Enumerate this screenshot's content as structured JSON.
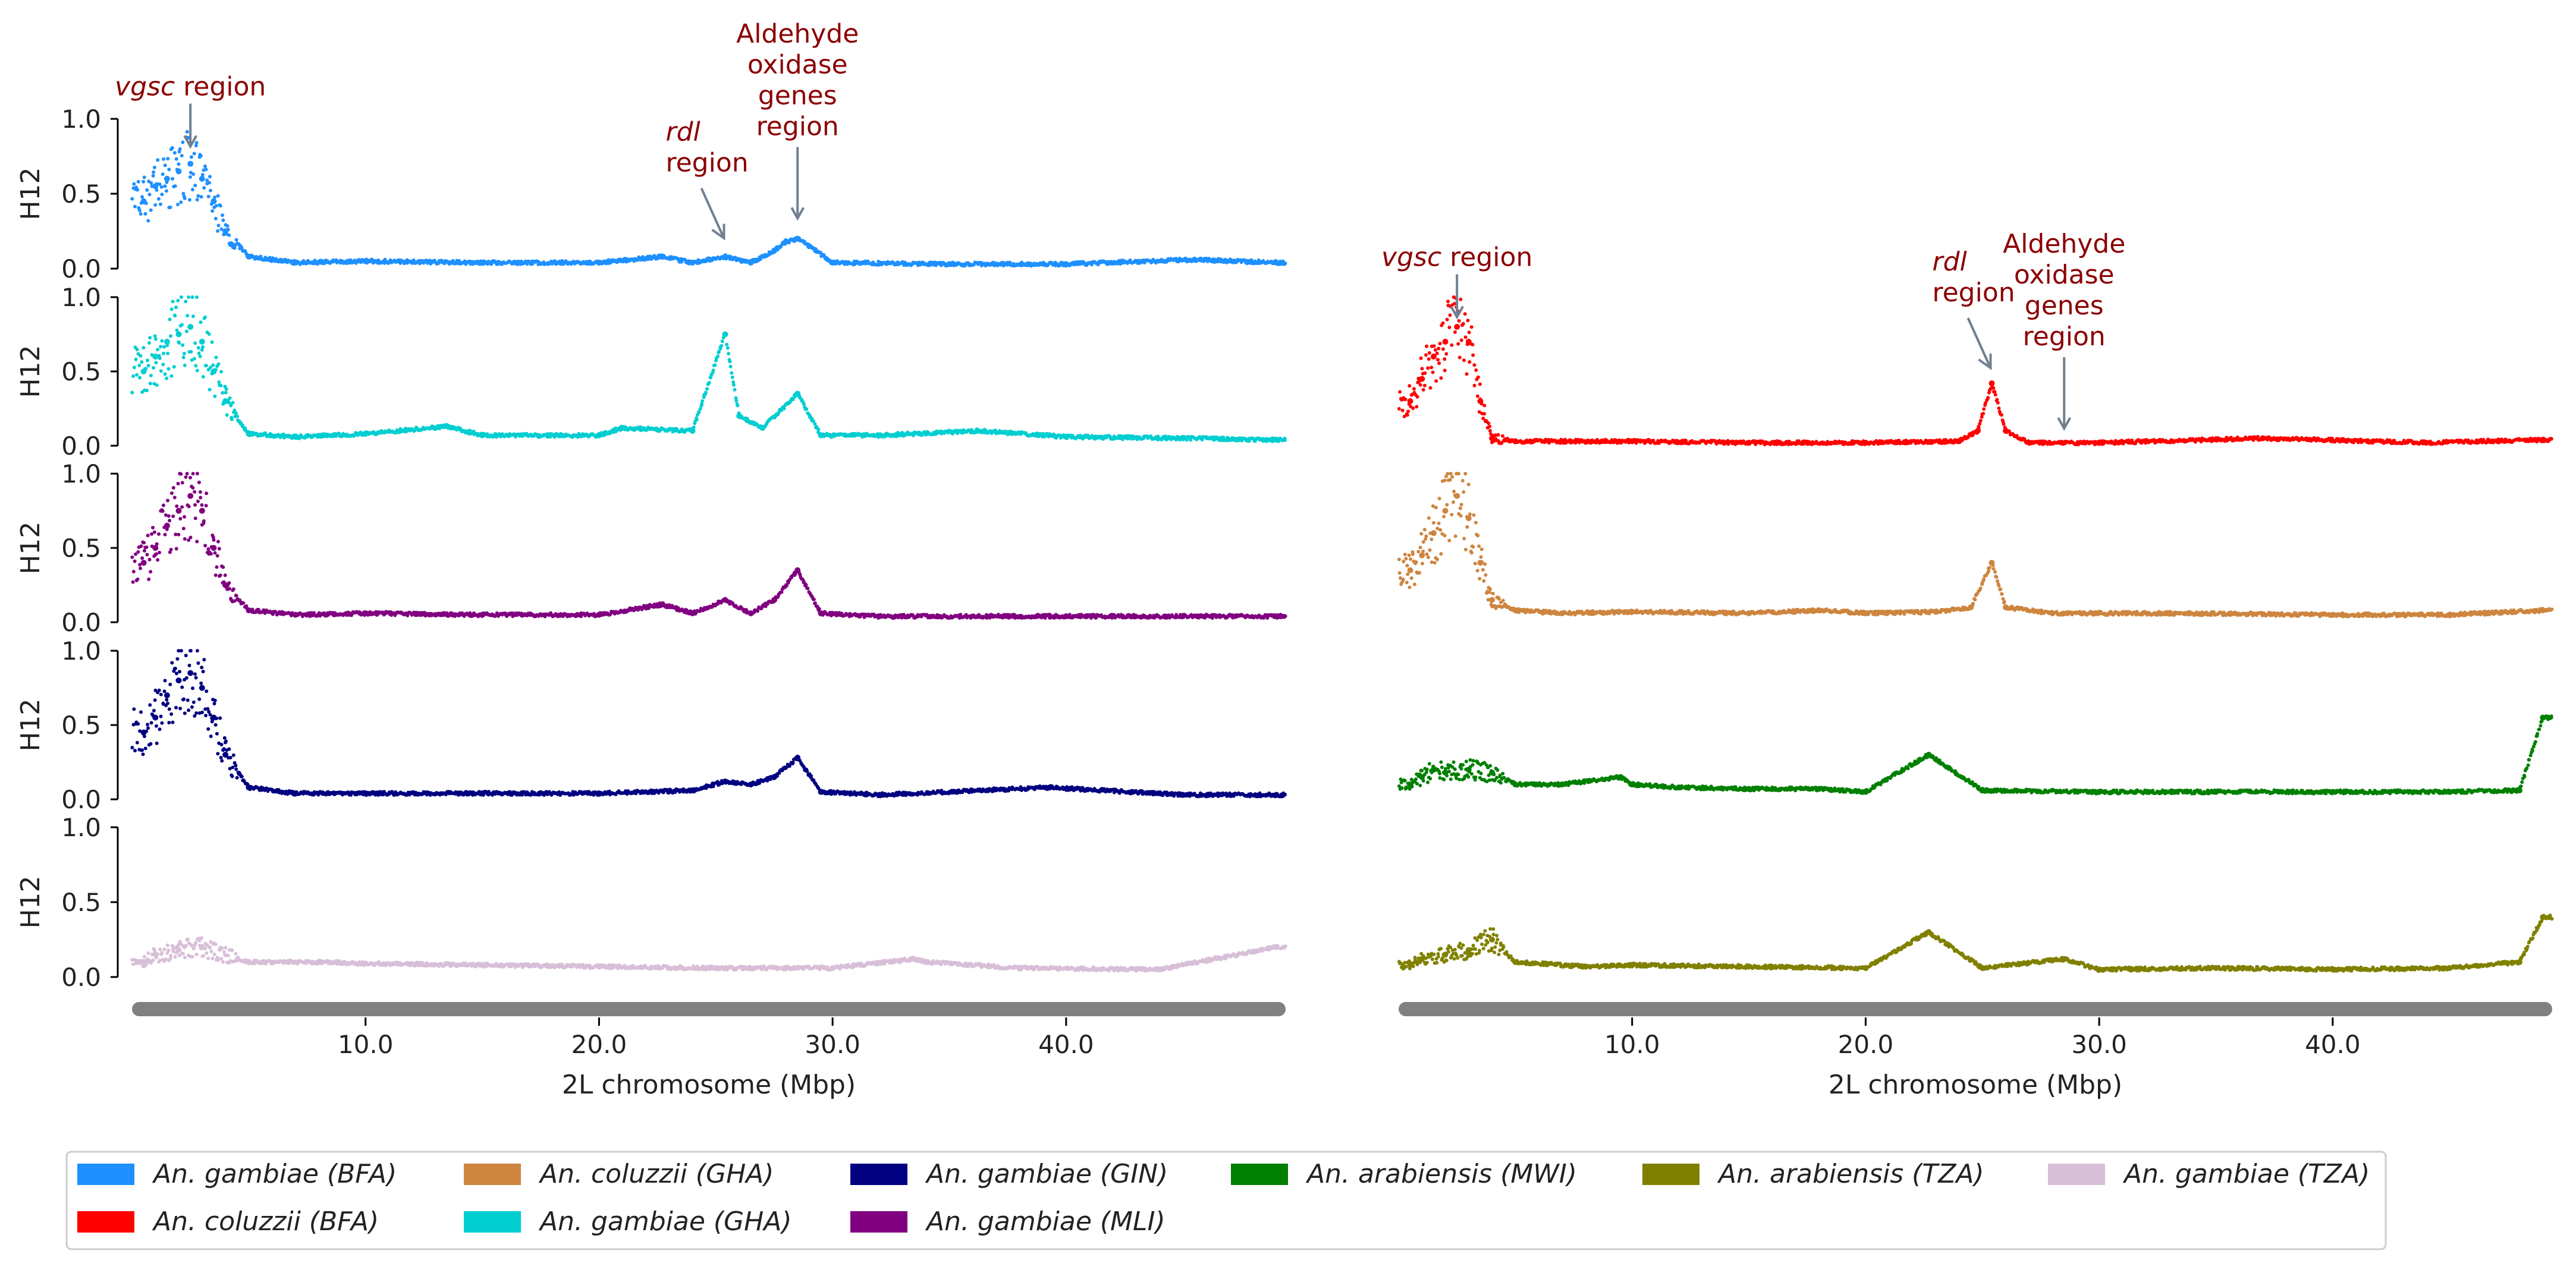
{
  "chart_data": [
    {
      "type": "scatter",
      "panel": "left",
      "xlabel": "2L chromosome (Mbp)",
      "x_ticks": [
        "10.0",
        "20.0",
        "30.0",
        "40.0"
      ],
      "xlim": [
        0,
        49.4
      ],
      "ylabel": "H12",
      "y_ticks": [
        "0.0",
        "0.5",
        "1.0"
      ],
      "ylim": [
        0,
        1
      ],
      "grid": false,
      "annotations": [
        {
          "text_italic": "vgsc",
          "text": " region",
          "x": 2.5,
          "y": 0.8
        },
        {
          "text_italic": "rdl",
          "text": "\nregion",
          "x": 25.4,
          "y": 0.18
        },
        {
          "text": "Aldehyde\noxidase\ngenes\nregion",
          "x": 28.5,
          "y": 0.32
        }
      ],
      "series": [
        {
          "name": "An. gambiae (BFA)",
          "color": "#1e90ff",
          "x": [
            0.5,
            1.0,
            1.5,
            2.0,
            2.5,
            3.0,
            3.5,
            4.0,
            5.0,
            7.0,
            10.0,
            15.0,
            20.0,
            22.7,
            24.0,
            25.4,
            26.5,
            27.5,
            28.0,
            28.5,
            29.0,
            30.0,
            35.0,
            40.0,
            45.5,
            49.0
          ],
          "y": [
            0.45,
            0.55,
            0.6,
            0.65,
            0.7,
            0.6,
            0.45,
            0.25,
            0.08,
            0.04,
            0.05,
            0.04,
            0.04,
            0.08,
            0.04,
            0.08,
            0.04,
            0.12,
            0.18,
            0.2,
            0.15,
            0.04,
            0.03,
            0.03,
            0.06,
            0.04
          ]
        },
        {
          "name": "An. gambiae (GHA)",
          "color": "#00ced1",
          "x": [
            0.5,
            1.0,
            1.5,
            2.0,
            2.5,
            3.0,
            3.5,
            4.0,
            5.0,
            7.0,
            10.0,
            13.5,
            15.0,
            20.0,
            21.0,
            24.0,
            25.4,
            26.0,
            27.0,
            28.5,
            29.5,
            32.0,
            36.2,
            40.0,
            45.0,
            49.0
          ],
          "y": [
            0.5,
            0.6,
            0.7,
            0.75,
            0.8,
            0.7,
            0.5,
            0.3,
            0.08,
            0.06,
            0.08,
            0.13,
            0.07,
            0.07,
            0.12,
            0.1,
            0.75,
            0.2,
            0.12,
            0.35,
            0.07,
            0.07,
            0.1,
            0.06,
            0.05,
            0.04
          ]
        },
        {
          "name": "An. gambiae (MLI)",
          "color": "#800080",
          "x": [
            0.5,
            1.0,
            1.5,
            2.0,
            2.5,
            3.0,
            3.5,
            4.0,
            5.0,
            7.0,
            10.0,
            15.0,
            20.0,
            22.7,
            24.0,
            25.4,
            26.5,
            27.5,
            28.5,
            29.5,
            32.0,
            40.0,
            49.0
          ],
          "y": [
            0.4,
            0.5,
            0.65,
            0.75,
            0.85,
            0.75,
            0.5,
            0.25,
            0.08,
            0.05,
            0.06,
            0.05,
            0.05,
            0.12,
            0.06,
            0.15,
            0.06,
            0.15,
            0.35,
            0.06,
            0.04,
            0.04,
            0.04
          ]
        },
        {
          "name": "An. gambiae (GIN)",
          "color": "#000080",
          "x": [
            0.5,
            1.0,
            1.5,
            2.0,
            2.5,
            3.0,
            3.5,
            4.0,
            5.0,
            7.0,
            10.0,
            15.0,
            20.0,
            24.0,
            25.4,
            26.5,
            27.5,
            28.5,
            29.5,
            32.0,
            39.3,
            45.0,
            49.0
          ],
          "y": [
            0.45,
            0.55,
            0.7,
            0.8,
            0.85,
            0.75,
            0.55,
            0.3,
            0.08,
            0.04,
            0.04,
            0.04,
            0.04,
            0.06,
            0.12,
            0.1,
            0.15,
            0.28,
            0.05,
            0.03,
            0.08,
            0.03,
            0.03
          ]
        },
        {
          "name": "An. gambiae (TZA)",
          "color": "#d8bfd8",
          "x": [
            0.5,
            1.0,
            2.0,
            3.0,
            5.0,
            8.0,
            10.0,
            15.0,
            20.0,
            25.0,
            30.0,
            33.5,
            34.0,
            38.0,
            44.0,
            49.0
          ],
          "y": [
            0.1,
            0.15,
            0.18,
            0.2,
            0.1,
            0.1,
            0.09,
            0.08,
            0.07,
            0.06,
            0.06,
            0.12,
            0.1,
            0.06,
            0.05,
            0.2
          ]
        }
      ]
    },
    {
      "type": "scatter",
      "panel": "right",
      "xlabel": "2L chromosome (Mbp)",
      "x_ticks": [
        "10.0",
        "20.0",
        "30.0",
        "40.0"
      ],
      "xlim": [
        0,
        49.4
      ],
      "ylabel": "H12",
      "y_ticks": [
        "0.0",
        "0.5",
        "1.0"
      ],
      "ylim": [
        0,
        1
      ],
      "grid": false,
      "annotations": [
        {
          "text_italic": "vgsc",
          "text": " region",
          "x": 2.5,
          "y": 0.85
        },
        {
          "text_italic": "rdl",
          "text": "\nregion",
          "x": 25.4,
          "y": 0.5
        },
        {
          "text": "Aldehyde\noxidase\ngenes\nregion",
          "x": 28.5,
          "y": 0.1
        }
      ],
      "series": [
        {
          "name": "An. coluzzii (BFA)",
          "color": "#ff0000",
          "x": [
            0.5,
            1.0,
            1.5,
            2.0,
            2.5,
            3.0,
            3.5,
            4.0,
            5.0,
            7.0,
            10.0,
            15.0,
            20.0,
            24.0,
            24.8,
            25.4,
            26.0,
            27.0,
            30.0,
            37.0,
            44.0,
            49.0
          ],
          "y": [
            0.3,
            0.45,
            0.6,
            0.7,
            0.8,
            0.7,
            0.3,
            0.05,
            0.03,
            0.03,
            0.03,
            0.02,
            0.02,
            0.03,
            0.1,
            0.42,
            0.1,
            0.02,
            0.02,
            0.05,
            0.02,
            0.04
          ]
        },
        {
          "name": "An. coluzzii (GHA)",
          "color": "#cd853f",
          "x": [
            0.5,
            1.0,
            1.5,
            2.0,
            2.5,
            3.0,
            3.5,
            4.0,
            5.0,
            7.0,
            10.0,
            15.0,
            18.0,
            20.0,
            23.0,
            24.5,
            25.4,
            26.0,
            28.0,
            33.0,
            40.0,
            45.0,
            49.0
          ],
          "y": [
            0.35,
            0.45,
            0.6,
            0.75,
            0.85,
            0.7,
            0.4,
            0.15,
            0.08,
            0.06,
            0.07,
            0.06,
            0.08,
            0.06,
            0.07,
            0.1,
            0.4,
            0.1,
            0.06,
            0.06,
            0.05,
            0.05,
            0.08
          ]
        },
        {
          "name": "An. arabiensis (MWI)",
          "color": "#008000",
          "x": [
            0.5,
            1.0,
            1.5,
            2.0,
            3.0,
            4.0,
            5.0,
            7.0,
            9.5,
            10.0,
            12.0,
            15.0,
            18.0,
            20.0,
            22.7,
            25.0,
            30.0,
            35.0,
            40.0,
            45.0,
            48.0,
            49.0
          ],
          "y": [
            0.1,
            0.15,
            0.2,
            0.18,
            0.2,
            0.18,
            0.1,
            0.1,
            0.15,
            0.1,
            0.08,
            0.07,
            0.07,
            0.05,
            0.3,
            0.06,
            0.05,
            0.05,
            0.05,
            0.05,
            0.06,
            0.55
          ]
        },
        {
          "name": "An. arabiensis (TZA)",
          "color": "#808000",
          "x": [
            0.5,
            1.0,
            2.0,
            3.0,
            4.0,
            5.0,
            8.0,
            10.0,
            15.0,
            20.0,
            22.7,
            25.0,
            28.5,
            30.0,
            35.0,
            40.0,
            45.0,
            48.0,
            49.0
          ],
          "y": [
            0.08,
            0.12,
            0.15,
            0.18,
            0.25,
            0.1,
            0.07,
            0.08,
            0.07,
            0.06,
            0.3,
            0.06,
            0.12,
            0.05,
            0.06,
            0.05,
            0.06,
            0.1,
            0.4
          ]
        }
      ]
    }
  ],
  "legend": {
    "placement": "bottom",
    "rows": [
      [
        {
          "label": "An. gambiae (BFA)",
          "color": "#1e90ff"
        },
        {
          "label": "An. coluzzii (GHA)",
          "color": "#cd853f"
        },
        {
          "label": "An. gambiae (GIN)",
          "color": "#000080"
        },
        {
          "label": "An. arabiensis (MWI)",
          "color": "#008000"
        },
        {
          "label": "An. arabiensis (TZA)",
          "color": "#808000"
        },
        {
          "label": "An. gambiae (TZA)",
          "color": "#d8bfd8"
        }
      ],
      [
        {
          "label": "An. coluzzii (BFA)",
          "color": "#ff0000"
        },
        {
          "label": "An. gambiae (GHA)",
          "color": "#00ced1"
        },
        {
          "label": "An. gambiae (MLI)",
          "color": "#800080"
        }
      ]
    ]
  }
}
